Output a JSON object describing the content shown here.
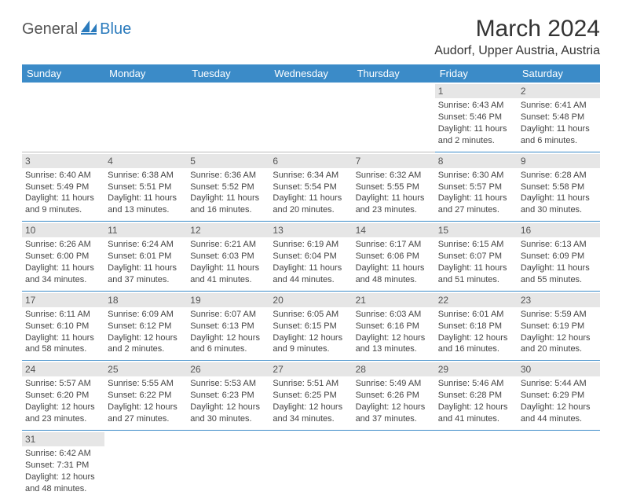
{
  "logo": {
    "part1": "General",
    "part2": "Blue"
  },
  "title": "March 2024",
  "location": "Audorf, Upper Austria, Austria",
  "colors": {
    "header_bg": "#3b8bc8",
    "header_text": "#ffffff",
    "row_border": "#3b8bc8",
    "daynum_bg": "#e6e6e6",
    "logo_blue": "#2b7bbd",
    "logo_gray": "#555555",
    "body_text": "#444444",
    "page_bg": "#ffffff"
  },
  "fonts": {
    "title_size_pt": 22,
    "location_size_pt": 12,
    "header_size_pt": 10,
    "cell_size_pt": 8
  },
  "weekdays": [
    "Sunday",
    "Monday",
    "Tuesday",
    "Wednesday",
    "Thursday",
    "Friday",
    "Saturday"
  ],
  "weeks": [
    [
      null,
      null,
      null,
      null,
      null,
      {
        "n": "1",
        "sunrise": "Sunrise: 6:43 AM",
        "sunset": "Sunset: 5:46 PM",
        "daylight": "Daylight: 11 hours and 2 minutes."
      },
      {
        "n": "2",
        "sunrise": "Sunrise: 6:41 AM",
        "sunset": "Sunset: 5:48 PM",
        "daylight": "Daylight: 11 hours and 6 minutes."
      }
    ],
    [
      {
        "n": "3",
        "sunrise": "Sunrise: 6:40 AM",
        "sunset": "Sunset: 5:49 PM",
        "daylight": "Daylight: 11 hours and 9 minutes."
      },
      {
        "n": "4",
        "sunrise": "Sunrise: 6:38 AM",
        "sunset": "Sunset: 5:51 PM",
        "daylight": "Daylight: 11 hours and 13 minutes."
      },
      {
        "n": "5",
        "sunrise": "Sunrise: 6:36 AM",
        "sunset": "Sunset: 5:52 PM",
        "daylight": "Daylight: 11 hours and 16 minutes."
      },
      {
        "n": "6",
        "sunrise": "Sunrise: 6:34 AM",
        "sunset": "Sunset: 5:54 PM",
        "daylight": "Daylight: 11 hours and 20 minutes."
      },
      {
        "n": "7",
        "sunrise": "Sunrise: 6:32 AM",
        "sunset": "Sunset: 5:55 PM",
        "daylight": "Daylight: 11 hours and 23 minutes."
      },
      {
        "n": "8",
        "sunrise": "Sunrise: 6:30 AM",
        "sunset": "Sunset: 5:57 PM",
        "daylight": "Daylight: 11 hours and 27 minutes."
      },
      {
        "n": "9",
        "sunrise": "Sunrise: 6:28 AM",
        "sunset": "Sunset: 5:58 PM",
        "daylight": "Daylight: 11 hours and 30 minutes."
      }
    ],
    [
      {
        "n": "10",
        "sunrise": "Sunrise: 6:26 AM",
        "sunset": "Sunset: 6:00 PM",
        "daylight": "Daylight: 11 hours and 34 minutes."
      },
      {
        "n": "11",
        "sunrise": "Sunrise: 6:24 AM",
        "sunset": "Sunset: 6:01 PM",
        "daylight": "Daylight: 11 hours and 37 minutes."
      },
      {
        "n": "12",
        "sunrise": "Sunrise: 6:21 AM",
        "sunset": "Sunset: 6:03 PM",
        "daylight": "Daylight: 11 hours and 41 minutes."
      },
      {
        "n": "13",
        "sunrise": "Sunrise: 6:19 AM",
        "sunset": "Sunset: 6:04 PM",
        "daylight": "Daylight: 11 hours and 44 minutes."
      },
      {
        "n": "14",
        "sunrise": "Sunrise: 6:17 AM",
        "sunset": "Sunset: 6:06 PM",
        "daylight": "Daylight: 11 hours and 48 minutes."
      },
      {
        "n": "15",
        "sunrise": "Sunrise: 6:15 AM",
        "sunset": "Sunset: 6:07 PM",
        "daylight": "Daylight: 11 hours and 51 minutes."
      },
      {
        "n": "16",
        "sunrise": "Sunrise: 6:13 AM",
        "sunset": "Sunset: 6:09 PM",
        "daylight": "Daylight: 11 hours and 55 minutes."
      }
    ],
    [
      {
        "n": "17",
        "sunrise": "Sunrise: 6:11 AM",
        "sunset": "Sunset: 6:10 PM",
        "daylight": "Daylight: 11 hours and 58 minutes."
      },
      {
        "n": "18",
        "sunrise": "Sunrise: 6:09 AM",
        "sunset": "Sunset: 6:12 PM",
        "daylight": "Daylight: 12 hours and 2 minutes."
      },
      {
        "n": "19",
        "sunrise": "Sunrise: 6:07 AM",
        "sunset": "Sunset: 6:13 PM",
        "daylight": "Daylight: 12 hours and 6 minutes."
      },
      {
        "n": "20",
        "sunrise": "Sunrise: 6:05 AM",
        "sunset": "Sunset: 6:15 PM",
        "daylight": "Daylight: 12 hours and 9 minutes."
      },
      {
        "n": "21",
        "sunrise": "Sunrise: 6:03 AM",
        "sunset": "Sunset: 6:16 PM",
        "daylight": "Daylight: 12 hours and 13 minutes."
      },
      {
        "n": "22",
        "sunrise": "Sunrise: 6:01 AM",
        "sunset": "Sunset: 6:18 PM",
        "daylight": "Daylight: 12 hours and 16 minutes."
      },
      {
        "n": "23",
        "sunrise": "Sunrise: 5:59 AM",
        "sunset": "Sunset: 6:19 PM",
        "daylight": "Daylight: 12 hours and 20 minutes."
      }
    ],
    [
      {
        "n": "24",
        "sunrise": "Sunrise: 5:57 AM",
        "sunset": "Sunset: 6:20 PM",
        "daylight": "Daylight: 12 hours and 23 minutes."
      },
      {
        "n": "25",
        "sunrise": "Sunrise: 5:55 AM",
        "sunset": "Sunset: 6:22 PM",
        "daylight": "Daylight: 12 hours and 27 minutes."
      },
      {
        "n": "26",
        "sunrise": "Sunrise: 5:53 AM",
        "sunset": "Sunset: 6:23 PM",
        "daylight": "Daylight: 12 hours and 30 minutes."
      },
      {
        "n": "27",
        "sunrise": "Sunrise: 5:51 AM",
        "sunset": "Sunset: 6:25 PM",
        "daylight": "Daylight: 12 hours and 34 minutes."
      },
      {
        "n": "28",
        "sunrise": "Sunrise: 5:49 AM",
        "sunset": "Sunset: 6:26 PM",
        "daylight": "Daylight: 12 hours and 37 minutes."
      },
      {
        "n": "29",
        "sunrise": "Sunrise: 5:46 AM",
        "sunset": "Sunset: 6:28 PM",
        "daylight": "Daylight: 12 hours and 41 minutes."
      },
      {
        "n": "30",
        "sunrise": "Sunrise: 5:44 AM",
        "sunset": "Sunset: 6:29 PM",
        "daylight": "Daylight: 12 hours and 44 minutes."
      }
    ],
    [
      {
        "n": "31",
        "sunrise": "Sunrise: 6:42 AM",
        "sunset": "Sunset: 7:31 PM",
        "daylight": "Daylight: 12 hours and 48 minutes."
      },
      null,
      null,
      null,
      null,
      null,
      null
    ]
  ]
}
